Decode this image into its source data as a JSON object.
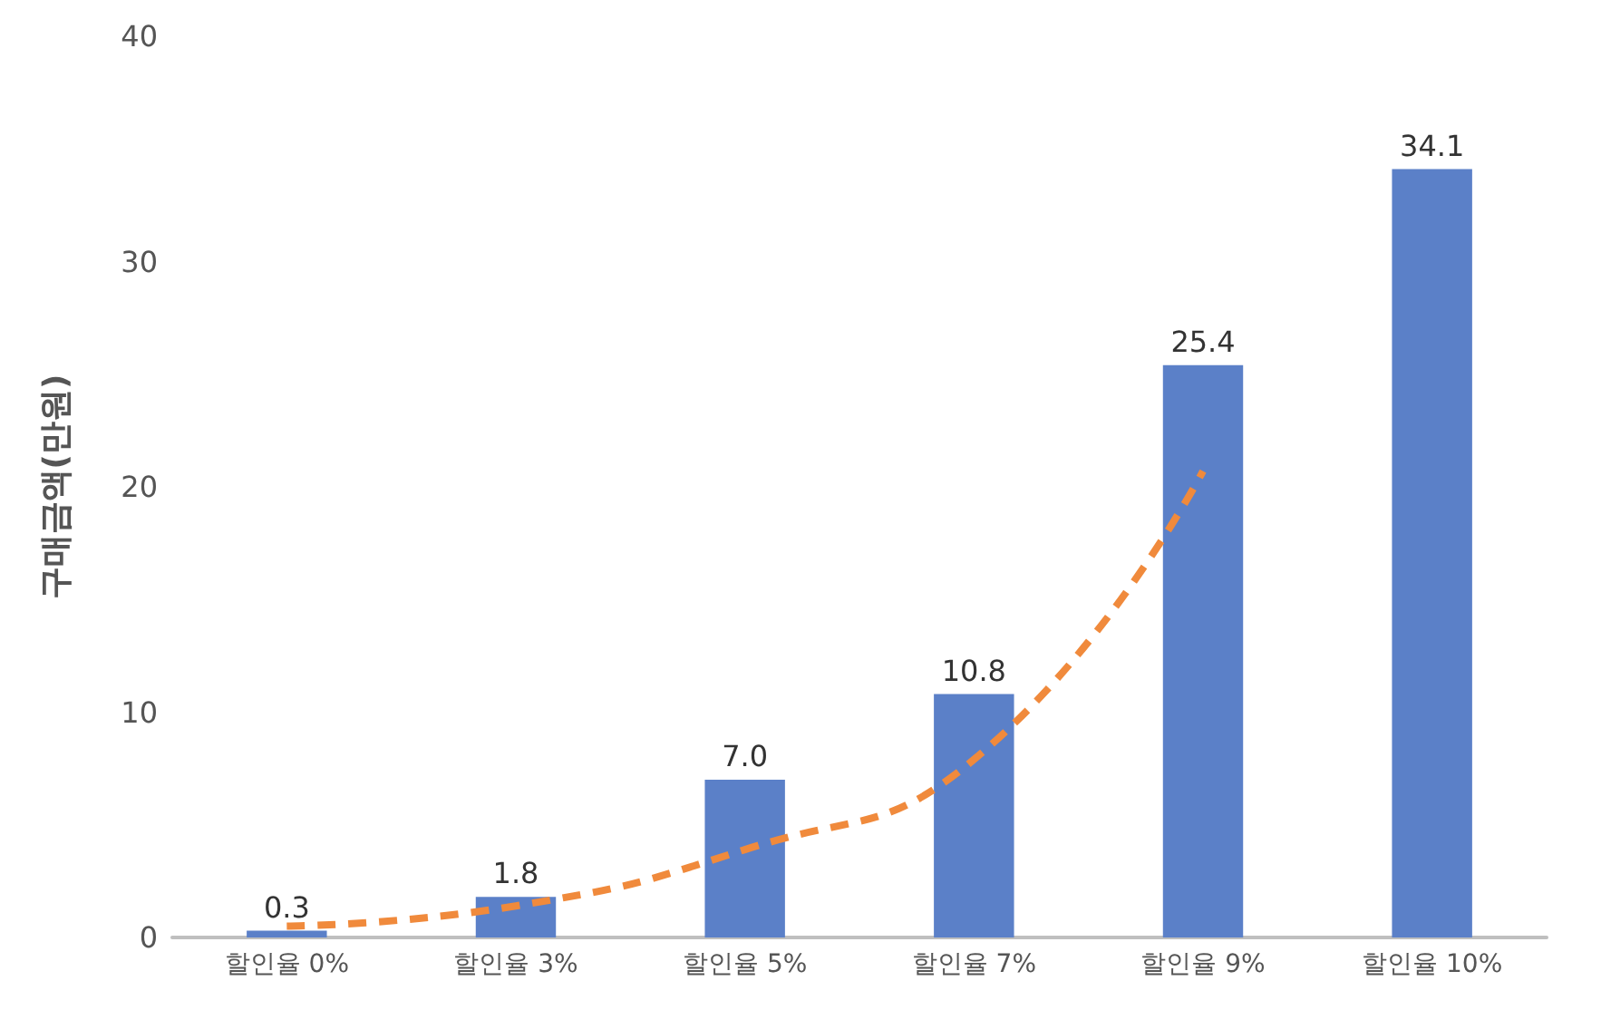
{
  "chart_data": {
    "type": "bar",
    "ylabel": "구매금액(만원)",
    "categories": [
      "할인율 0%",
      "할인율 3%",
      "할인율 5%",
      "할인율 7%",
      "할인율 9%",
      "할인율 10%"
    ],
    "series": [
      {
        "color": "#5b80c8",
        "values": [
          0.3,
          1.8,
          7.0,
          10.8,
          25.4,
          34.1
        ],
        "value_labels": [
          "0.3",
          "1.8",
          "7.0",
          "10.8",
          "25.4",
          "34.1"
        ]
      },
      {
        "type": "line",
        "color": "#f08a3c",
        "line_style": "dashed",
        "x": [
          "할인율 0%",
          "할인율 3%",
          "할인율 5%",
          "할인율 7%",
          "할인율 9%",
          "할인율 10%"
        ],
        "values": [
          0.5,
          1.4,
          3.9,
          7.9,
          20.7,
          null
        ]
      }
    ],
    "ylim": [
      0,
      40
    ],
    "yticks": [
      0,
      10,
      20,
      30,
      40
    ],
    "grid": false
  }
}
